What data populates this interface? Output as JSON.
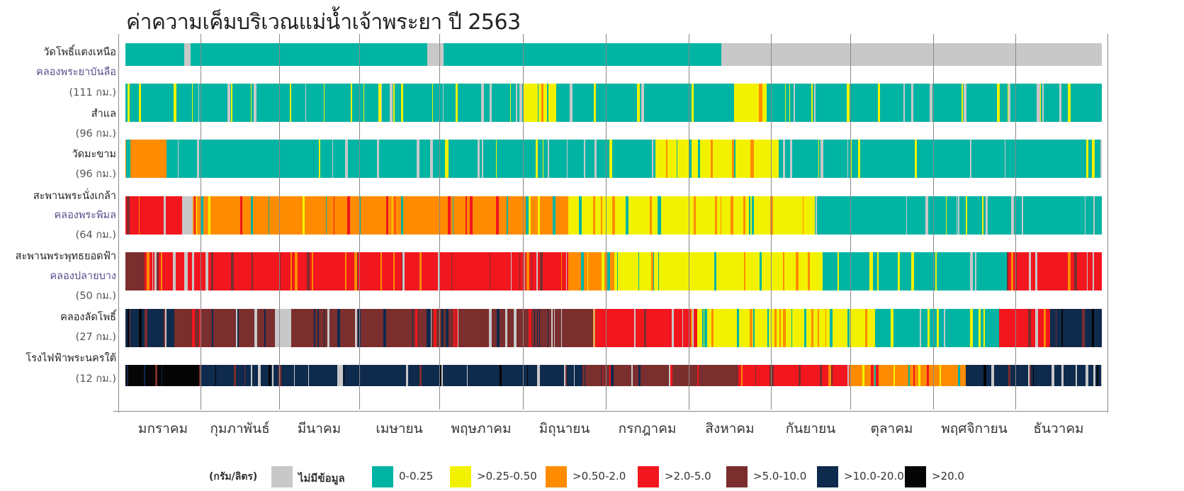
{
  "title": "ค่าความเค็มบริเวณแม่น้ำเจ้าพระยา ปี 2563",
  "legend": {
    "unit": "(กรัม/ลิตร)",
    "items": [
      {
        "key": "na",
        "label": "ไม่มีข้อมูล",
        "color": "#c8c8c8"
      },
      {
        "key": "c1",
        "label": "0-0.25",
        "color": "#00b4a4"
      },
      {
        "key": "c2",
        "label": ">0.25-0.50",
        "color": "#f2f200"
      },
      {
        "key": "c3",
        "label": ">0.50-2.0",
        "color": "#ff8c00"
      },
      {
        "key": "c4",
        "label": ">2.0-5.0",
        "color": "#f2161e"
      },
      {
        "key": "c5",
        "label": ">5.0-10.0",
        "color": "#7a2e2e"
      },
      {
        "key": "c6",
        "label": ">10.0-20.0",
        "color": "#0e2a4d"
      },
      {
        "key": "c7",
        "label": ">20.0",
        "color": "#050505"
      }
    ]
  },
  "stations": [
    {
      "lines": [
        {
          "text": "วัดโพธิ์แตงเหนือ",
          "kind": "name"
        },
        {
          "text": "คลองพระยาบันลือ",
          "kind": "canal"
        }
      ]
    },
    {
      "lines": [
        {
          "text": "(111 กม.)",
          "kind": "dist"
        },
        {
          "text": "สำแล",
          "kind": "name"
        },
        {
          "text": "(96 กม.)",
          "kind": "dist"
        }
      ]
    },
    {
      "lines": [
        {
          "text": "วัดมะขาม",
          "kind": "name"
        },
        {
          "text": "(96 กม.)",
          "kind": "dist"
        }
      ]
    },
    {
      "lines": [
        {
          "text": "สะพานพระนั่งเกล้า",
          "kind": "name"
        },
        {
          "text": "คลองพระพิมล",
          "kind": "canal"
        },
        {
          "text": "(64 กม.)",
          "kind": "dist"
        }
      ]
    },
    {
      "lines": [
        {
          "text": "สะพานพระพุทธยอดฟ้า",
          "kind": "name"
        },
        {
          "text": "คลองปลายบาง",
          "kind": "canal"
        },
        {
          "text": "(50 กม.)",
          "kind": "dist"
        }
      ]
    },
    {
      "lines": [
        {
          "text": "คลองลัดโพธิ์",
          "kind": "name"
        },
        {
          "text": "(27 กม.)",
          "kind": "dist"
        }
      ]
    },
    {
      "lines": [
        {
          "text": "โรงไฟฟ้าพระนครใต้",
          "kind": "name"
        },
        {
          "text": "(12 กม.)",
          "kind": "dist"
        }
      ]
    }
  ],
  "chart_data": {
    "type": "heatmap",
    "title": "ค่าความเค็มบริเวณแม่น้ำเจ้าพระยา ปี 2563",
    "x_unit": "month of 2563",
    "months": [
      "มกราคม",
      "กุมภาพันธ์",
      "มีนาคม",
      "เมษายน",
      "พฤษภาคม",
      "มิถุนายน",
      "กรกฎาคม",
      "สิงหาคม",
      "กันยายน",
      "ตุลาคม",
      "พฤศจิกายน",
      "ธันวาคม"
    ],
    "rows": [
      {
        "station": "วัดโพธิ์แตงเหนือ",
        "segments": [
          {
            "from": 0.0,
            "to": 0.78,
            "class": "c1"
          },
          {
            "from": 0.78,
            "to": 0.87,
            "class": "na"
          },
          {
            "from": 0.87,
            "to": 3.85,
            "class": "c1"
          },
          {
            "from": 3.85,
            "to": 4.05,
            "class": "na"
          },
          {
            "from": 4.05,
            "to": 7.4,
            "class": "c1"
          },
          {
            "from": 7.4,
            "to": 12.0,
            "class": "na"
          }
        ]
      },
      {
        "station": "สำแล",
        "segments": [
          {
            "from": 0.0,
            "to": 0.85,
            "class": "c1"
          },
          {
            "from": 0.03,
            "to": 0.06,
            "class": "c2"
          },
          {
            "from": 0.85,
            "to": 4.3,
            "class": "c1"
          },
          {
            "from": 4.3,
            "to": 5.15,
            "class": "c1"
          },
          {
            "from": 5.0,
            "to": 5.4,
            "class": "c2"
          },
          {
            "from": 5.4,
            "to": 7.55,
            "class": "c1"
          },
          {
            "from": 7.55,
            "to": 7.95,
            "class": "c2"
          },
          {
            "from": 7.95,
            "to": 12.0,
            "class": "c1"
          }
        ]
      },
      {
        "station": "วัดมะขาม",
        "segments": [
          {
            "from": 0.0,
            "to": 0.55,
            "class": "c3"
          },
          {
            "from": 0.55,
            "to": 4.7,
            "class": "c1"
          },
          {
            "from": 4.7,
            "to": 6.6,
            "class": "c1"
          },
          {
            "from": 6.6,
            "to": 8.1,
            "class": "c2"
          },
          {
            "from": 8.1,
            "to": 12.0,
            "class": "c1"
          }
        ]
      },
      {
        "station": "สะพานพระนั่งเกล้า",
        "segments": [
          {
            "from": 0.0,
            "to": 0.75,
            "class": "c4"
          },
          {
            "from": 0.75,
            "to": 0.9,
            "class": "na"
          },
          {
            "from": 0.9,
            "to": 5.55,
            "class": "c3"
          },
          {
            "from": 5.55,
            "to": 8.55,
            "class": "c2"
          },
          {
            "from": 8.55,
            "to": 12.0,
            "class": "c1"
          }
        ]
      },
      {
        "station": "สะพานพระพุทธยอดฟ้า",
        "segments": [
          {
            "from": 0.0,
            "to": 0.25,
            "class": "c5"
          },
          {
            "from": 0.25,
            "to": 5.55,
            "class": "c4"
          },
          {
            "from": 5.55,
            "to": 6.1,
            "class": "c3"
          },
          {
            "from": 6.1,
            "to": 8.65,
            "class": "c2"
          },
          {
            "from": 8.65,
            "to": 10.9,
            "class": "c1"
          },
          {
            "from": 10.9,
            "to": 12.0,
            "class": "c4"
          }
        ]
      },
      {
        "station": "คลองลัดโพธิ์",
        "segments": [
          {
            "from": 0.0,
            "to": 0.65,
            "class": "c6"
          },
          {
            "from": 0.65,
            "to": 1.95,
            "class": "c5"
          },
          {
            "from": 1.95,
            "to": 2.15,
            "class": "na"
          },
          {
            "from": 2.15,
            "to": 5.85,
            "class": "c5"
          },
          {
            "from": 5.85,
            "to": 7.1,
            "class": "c4"
          },
          {
            "from": 7.1,
            "to": 9.3,
            "class": "c2"
          },
          {
            "from": 9.3,
            "to": 10.8,
            "class": "c1"
          },
          {
            "from": 10.8,
            "to": 11.4,
            "class": "c4"
          },
          {
            "from": 11.4,
            "to": 12.0,
            "class": "c6"
          }
        ]
      },
      {
        "station": "โรงไฟฟ้าพระนครใต้",
        "segments": [
          {
            "from": 0.0,
            "to": 1.0,
            "class": "c7"
          },
          {
            "from": 1.0,
            "to": 5.75,
            "class": "c6"
          },
          {
            "from": 5.75,
            "to": 7.6,
            "class": "c5"
          },
          {
            "from": 7.6,
            "to": 9.0,
            "class": "c4"
          },
          {
            "from": 9.0,
            "to": 10.4,
            "class": "c3"
          },
          {
            "from": 10.4,
            "to": 12.0,
            "class": "c6"
          }
        ]
      }
    ],
    "legend_placement": "bottom"
  }
}
